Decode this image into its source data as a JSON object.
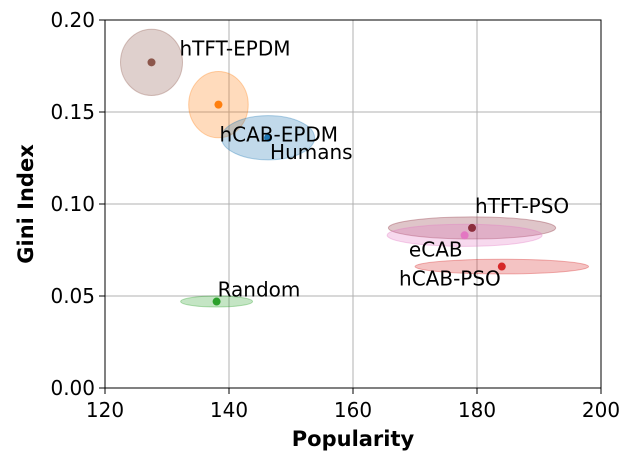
{
  "chart_data": {
    "type": "scatter",
    "title": "",
    "xlabel": "Popularity",
    "ylabel": "Gini Index",
    "xlim": [
      120,
      200
    ],
    "ylim": [
      0.0,
      0.2
    ],
    "x_ticks": [
      120,
      140,
      160,
      180,
      200
    ],
    "y_ticks": [
      0.0,
      0.05,
      0.1,
      0.15,
      0.2
    ],
    "x_tick_labels": [
      "120",
      "140",
      "160",
      "180",
      "200"
    ],
    "y_tick_labels": [
      "0.00",
      "0.05",
      "0.10",
      "0.15",
      "0.20"
    ],
    "grid": true,
    "legend": "none",
    "series": [
      {
        "name": "hTFT-EPDM",
        "x": 127.5,
        "y": 0.177,
        "x_spread": 5.0,
        "y_spread": 0.018,
        "color": "#8c564b"
      },
      {
        "name": "hCAB-EPDM",
        "x": 138.3,
        "y": 0.154,
        "x_spread": 4.8,
        "y_spread": 0.018,
        "color": "#ff7f0e"
      },
      {
        "name": "Humans",
        "x": 146.3,
        "y": 0.136,
        "x_spread": 7.5,
        "y_spread": 0.012,
        "color": "#1f77b4"
      },
      {
        "name": "hTFT-PSO",
        "x": 179.2,
        "y": 0.087,
        "x_spread": 13.5,
        "y_spread": 0.006,
        "color": "#8c2d3c"
      },
      {
        "name": "eCAB",
        "x": 178.0,
        "y": 0.083,
        "x_spread": 12.5,
        "y_spread": 0.006,
        "color": "#e377c2"
      },
      {
        "name": "hCAB-PSO",
        "x": 184.0,
        "y": 0.066,
        "x_spread": 14.0,
        "y_spread": 0.004,
        "color": "#d62728"
      },
      {
        "name": "Random",
        "x": 138.0,
        "y": 0.047,
        "x_spread": 5.8,
        "y_spread": 0.003,
        "color": "#2ca02c"
      }
    ]
  }
}
